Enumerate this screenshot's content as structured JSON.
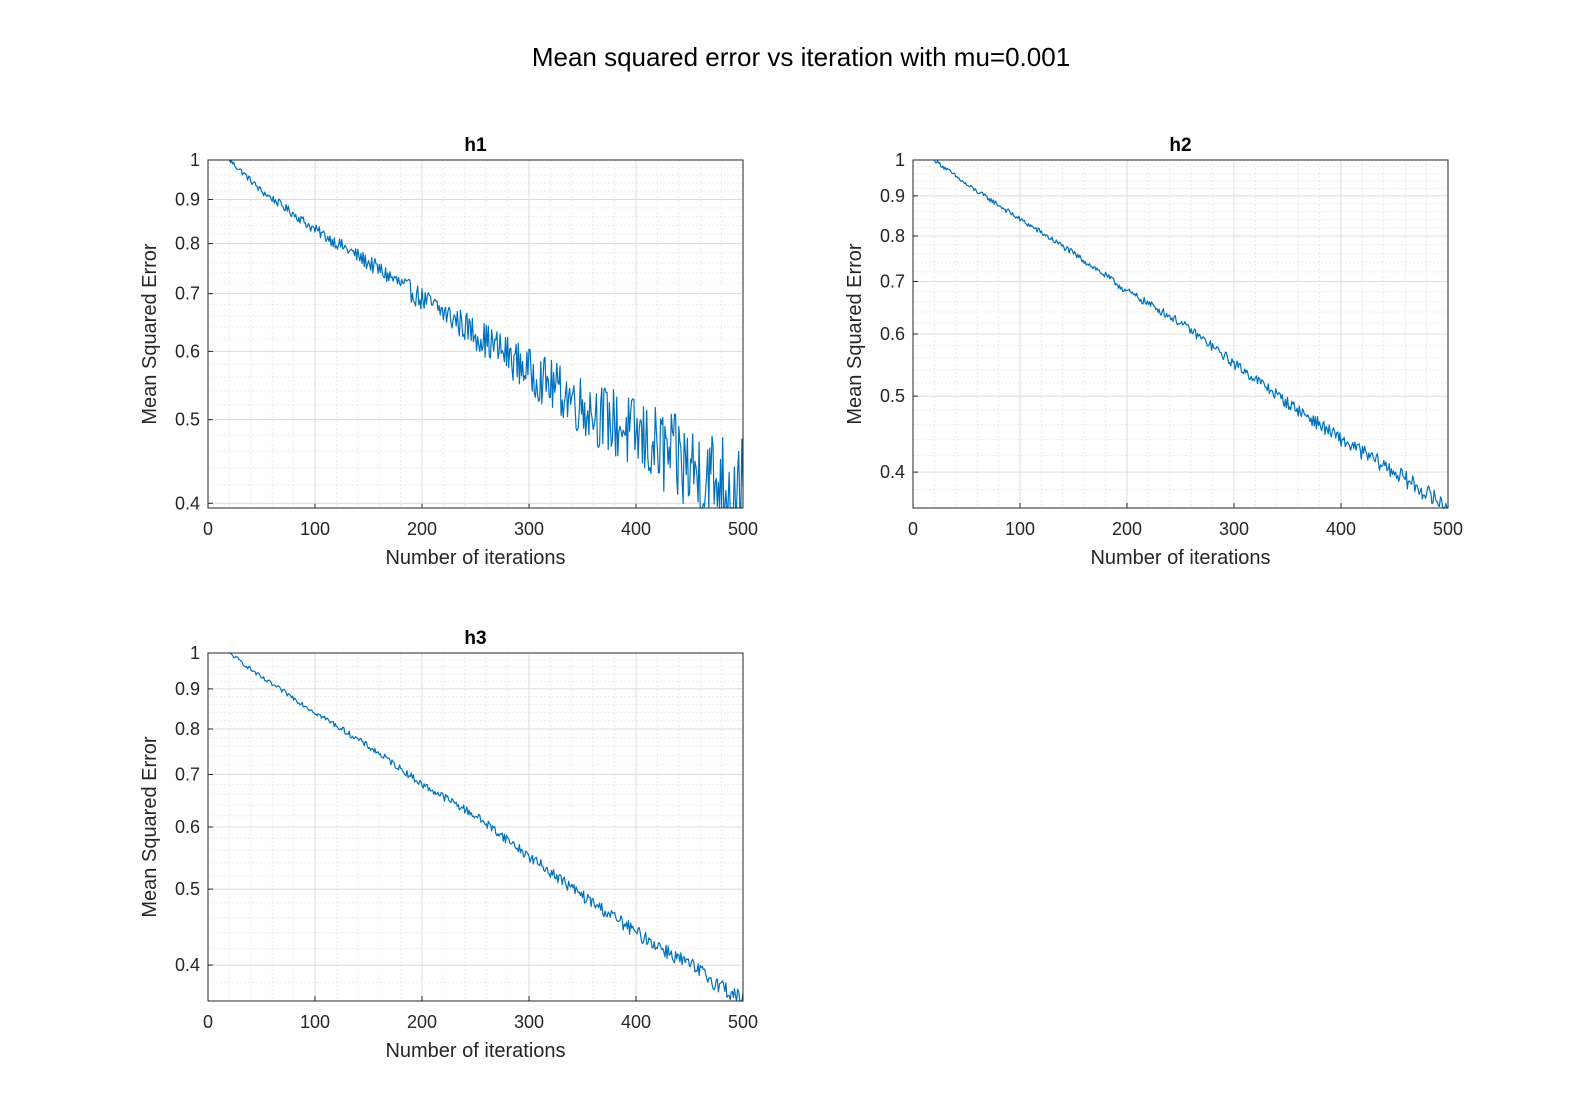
{
  "figure_title": "Mean squared error vs iteration with mu=0.001",
  "colors": {
    "line": "#0072BD",
    "grid_major": "#dcdcdc",
    "grid_minor": "#ededed",
    "axes": "#262626"
  },
  "chart_data": [
    {
      "type": "line",
      "title": "h1",
      "xlabel": "Number of iterations",
      "ylabel": "Mean Squared Error",
      "xlim": [
        0,
        500
      ],
      "ylim": [
        0.395,
        1.0
      ],
      "yscale": "log",
      "grid": "on (major and minor)",
      "xticks": [
        "0",
        "100",
        "200",
        "300",
        "400",
        "500"
      ],
      "yticks": [
        "0.4",
        "0.5",
        "0.6",
        "0.7",
        "0.8",
        "0.9",
        "1"
      ],
      "series": [
        {
          "x": [
            20,
            50,
            100,
            150,
            200,
            250,
            300,
            350,
            400,
            450,
            500
          ],
          "values": [
            1.0,
            0.92,
            0.83,
            0.76,
            0.69,
            0.63,
            0.57,
            0.52,
            0.48,
            0.44,
            0.41
          ],
          "noise": "increasing fluctuations; amplitude about ±0.01 near start to ±0.06 near end"
        }
      ]
    },
    {
      "type": "line",
      "title": "h2",
      "xlabel": "Number of iterations",
      "ylabel": "Mean Squared Error",
      "xlim": [
        0,
        500
      ],
      "ylim": [
        0.36,
        1.0
      ],
      "yscale": "log",
      "grid": "on (major and minor)",
      "xticks": [
        "0",
        "100",
        "200",
        "300",
        "400",
        "500"
      ],
      "yticks": [
        "0.4",
        "0.5",
        "0.6",
        "0.7",
        "0.8",
        "0.9",
        "1"
      ],
      "series": [
        {
          "x": [
            20,
            50,
            100,
            150,
            200,
            250,
            300,
            350,
            400,
            450,
            500
          ],
          "values": [
            1.0,
            0.93,
            0.84,
            0.76,
            0.68,
            0.62,
            0.55,
            0.49,
            0.44,
            0.4,
            0.36
          ],
          "noise": "small fluctuations about ±0.01"
        }
      ]
    },
    {
      "type": "line",
      "title": "h3",
      "xlabel": "Number of iterations",
      "ylabel": "Mean Squared Error",
      "xlim": [
        0,
        500
      ],
      "ylim": [
        0.36,
        1.0
      ],
      "yscale": "log",
      "grid": "on (major and minor)",
      "xticks": [
        "0",
        "100",
        "200",
        "300",
        "400",
        "500"
      ],
      "yticks": [
        "0.4",
        "0.5",
        "0.6",
        "0.7",
        "0.8",
        "0.9",
        "1"
      ],
      "series": [
        {
          "x": [
            20,
            50,
            100,
            150,
            200,
            250,
            300,
            350,
            400,
            450,
            500
          ],
          "values": [
            1.0,
            0.93,
            0.84,
            0.76,
            0.68,
            0.62,
            0.55,
            0.49,
            0.44,
            0.4,
            0.36
          ],
          "noise": "small fluctuations about ±0.01"
        }
      ]
    }
  ]
}
